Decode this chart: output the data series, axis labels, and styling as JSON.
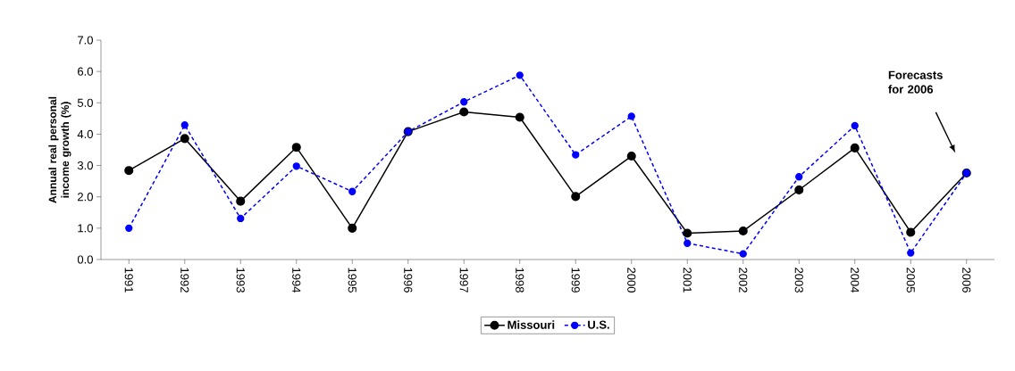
{
  "chart_data": {
    "type": "line",
    "ylabel": "Annual real personal income growth (%)",
    "categories": [
      "1991",
      "1992",
      "1993",
      "1994",
      "1995",
      "1996",
      "1997",
      "1998",
      "1999",
      "2000",
      "2001",
      "2002",
      "2003",
      "2004",
      "2005",
      "2006"
    ],
    "series": [
      {
        "name": "Missouri",
        "color": "#000000",
        "line_style": "solid",
        "values": [
          2.84,
          3.86,
          1.86,
          3.58,
          1.0,
          4.08,
          4.71,
          4.54,
          2.01,
          3.3,
          0.84,
          0.91,
          2.22,
          3.56,
          0.87,
          2.76
        ]
      },
      {
        "name": "U.S.",
        "color": "#0000ff",
        "line_style": "dashed",
        "values": [
          1.0,
          4.29,
          1.31,
          2.98,
          2.17,
          4.08,
          5.03,
          5.88,
          3.34,
          4.57,
          0.52,
          0.18,
          2.64,
          4.27,
          0.21,
          2.76
        ]
      }
    ],
    "ylim": [
      0,
      7
    ],
    "yticks": [
      {
        "value": 0,
        "label": "0.0"
      },
      {
        "value": 1,
        "label": "1.0"
      },
      {
        "value": 2,
        "label": "2.0"
      },
      {
        "value": 3,
        "label": "3.0"
      },
      {
        "value": 4,
        "label": "4.0"
      },
      {
        "value": 5,
        "label": "5.0"
      },
      {
        "value": 6,
        "label": "6.0"
      },
      {
        "value": 7,
        "label": "7.0"
      }
    ],
    "annotations": [
      "Forecasts for 2006"
    ],
    "marker": "circle",
    "legend": "bottom",
    "grid": false
  }
}
